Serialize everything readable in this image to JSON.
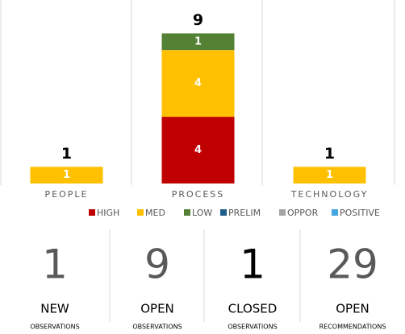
{
  "chart_data": {
    "type": "stacked_bar",
    "categories": [
      "PEOPLE",
      "PROCESS",
      "TECHNOLOGY"
    ],
    "series": [
      {
        "name": "HIGH",
        "color": "#c00000",
        "values": [
          0,
          4,
          0
        ]
      },
      {
        "name": "MED",
        "color": "#ffc000",
        "values": [
          1,
          4,
          1
        ]
      },
      {
        "name": "LOW",
        "color": "#548235",
        "values": [
          0,
          1,
          0
        ]
      },
      {
        "name": "PRELIM",
        "color": "#1f5f8b",
        "values": [
          0,
          0,
          0
        ]
      },
      {
        "name": "OPPOR",
        "color": "#a5a5a5",
        "values": [
          0,
          0,
          0
        ]
      },
      {
        "name": "POSITIVE",
        "color": "#45a6e0",
        "values": [
          0,
          0,
          0
        ]
      }
    ],
    "totals": [
      1,
      9,
      1
    ],
    "ylim": [
      0,
      11
    ],
    "legend": "bottom"
  },
  "kpis": [
    {
      "value": 1,
      "label": "NEW",
      "sublabel": "OBSERVATIONS",
      "color": "#595959"
    },
    {
      "value": 9,
      "label": "OPEN",
      "sublabel": "OBSERVATIONS",
      "color": "#595959"
    },
    {
      "value": 1,
      "label": "CLOSED",
      "sublabel": "OBSERVATIONS",
      "color": "#000000"
    },
    {
      "value": 29,
      "label": "OPEN",
      "sublabel": "RECOMMENDATIONS",
      "color": "#595959"
    }
  ]
}
